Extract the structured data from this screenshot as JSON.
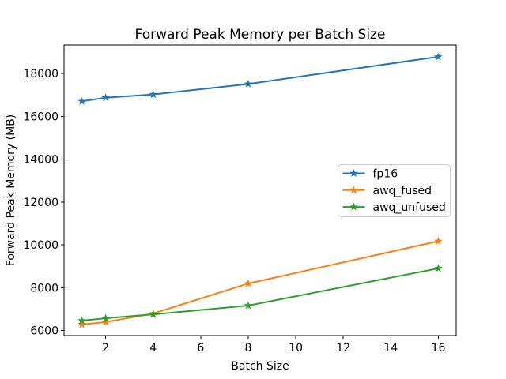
{
  "chart_data": {
    "type": "line",
    "title": "Forward Peak Memory per Batch Size",
    "xlabel": "Batch Size",
    "ylabel": "Forward Peak Memory (MB)",
    "x": [
      1,
      2,
      4,
      8,
      16
    ],
    "series": [
      {
        "name": "fp16",
        "color": "#1f77b4",
        "marker": "star",
        "values": [
          16700,
          16870,
          17020,
          17510,
          18780
        ]
      },
      {
        "name": "awq_fused",
        "color": "#ff7f0e",
        "marker": "star",
        "values": [
          6280,
          6390,
          6790,
          8190,
          10170
        ]
      },
      {
        "name": "awq_unfused",
        "color": "#2ca02c",
        "marker": "star",
        "values": [
          6460,
          6570,
          6750,
          7160,
          8900
        ]
      }
    ],
    "xticks": [
      2,
      4,
      6,
      8,
      10,
      12,
      14,
      16
    ],
    "yticks": [
      6000,
      8000,
      10000,
      12000,
      14000,
      16000,
      18000
    ],
    "xlim": [
      0.25,
      16.75
    ],
    "ylim": [
      5760,
      19330
    ],
    "grid": false,
    "legend": {
      "position": "center-right",
      "entries": [
        "fp16",
        "awq_fused",
        "awq_unfused"
      ]
    },
    "colors": {
      "axis": "#000000",
      "background": "#ffffff",
      "legend_border": "#cccccc"
    }
  }
}
